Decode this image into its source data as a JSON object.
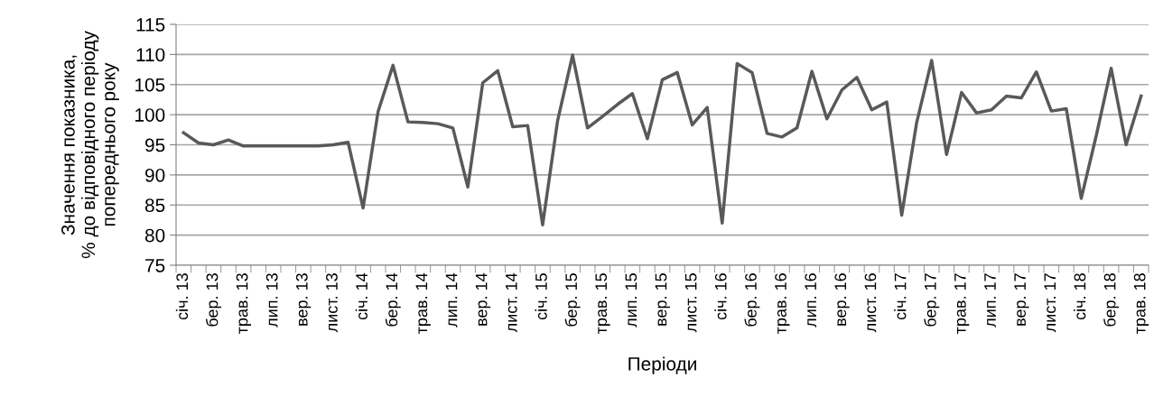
{
  "chart_data": {
    "type": "line",
    "xlabel": "Періоди",
    "ylabel": "Значення показника,\n% до відповідного періоду\nпопереднього року",
    "categories": [
      "січ. 13",
      null,
      "бер. 13",
      null,
      "трав. 13",
      null,
      "лип. 13",
      null,
      "вер. 13",
      null,
      "лист. 13",
      null,
      "січ. 14",
      null,
      "бер. 14",
      null,
      "трав. 14",
      null,
      "лип. 14",
      null,
      "вер. 14",
      null,
      "лист. 14",
      null,
      "січ. 15",
      null,
      "бер. 15",
      null,
      "трав. 15",
      null,
      "лип. 15",
      null,
      "вер. 15",
      null,
      "лист. 15",
      null,
      "січ. 16",
      null,
      "бер. 16",
      null,
      "трав. 16",
      null,
      "лип. 16",
      null,
      "вер. 16",
      null,
      "лист. 16",
      null,
      "січ. 17",
      null,
      "бер. 17",
      null,
      "трав. 17",
      null,
      "лип. 17",
      null,
      "вер. 17",
      null,
      "лист. 17",
      null,
      "січ. 18",
      null,
      "бер. 18",
      null,
      "трав. 18"
    ],
    "series": [
      {
        "color": "#595959",
        "values": [
          97,
          95.3,
          95,
          95.8,
          94.8,
          94.8,
          94.8,
          94.8,
          94.8,
          94.8,
          95,
          95.4,
          84.5,
          100.5,
          108.2,
          98.8,
          98.7,
          98.5,
          97.8,
          88,
          105.3,
          107.3,
          98,
          98.2,
          81.7,
          99,
          109.9,
          97.8,
          99.7,
          101.7,
          103.5,
          96,
          105.8,
          107,
          98.3,
          101.2,
          82,
          108.5,
          107,
          96.9,
          96.3,
          97.8,
          107.2,
          99.3,
          104.1,
          106.2,
          100.8,
          102.1,
          83.3,
          98.7,
          109,
          93.4,
          103.7,
          100.3,
          100.8,
          103.1,
          102.8,
          107.1,
          100.6,
          101,
          86.1,
          96.5,
          107.7,
          95,
          103.1
        ]
      }
    ],
    "ylim": [
      75,
      115
    ],
    "yticks": [
      75,
      80,
      85,
      90,
      95,
      100,
      105,
      110,
      115
    ],
    "grid": "y",
    "marker": "none",
    "line_style": "solid"
  }
}
